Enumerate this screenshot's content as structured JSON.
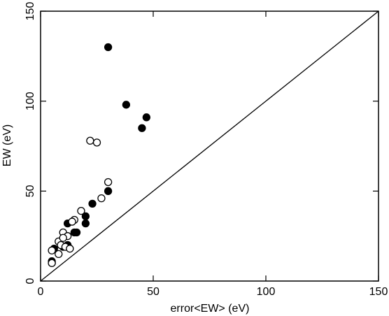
{
  "chart_data": {
    "type": "scatter",
    "title": "",
    "xlabel": "error<EW> (eV)",
    "ylabel": "EW (eV)",
    "xlim": [
      0,
      150
    ],
    "ylim": [
      0,
      150
    ],
    "x_ticks": [
      0,
      50,
      100,
      150
    ],
    "y_ticks": [
      0,
      50,
      100,
      150
    ],
    "x_tick_labels": [
      "0",
      "50",
      "100",
      "150"
    ],
    "y_tick_labels": [
      "0",
      "50",
      "100",
      "150"
    ],
    "grid": false,
    "legend": "none",
    "reference_line": {
      "type": "identity",
      "from": [
        0,
        0
      ],
      "to": [
        150,
        150
      ]
    },
    "series": [
      {
        "marker": "filled-circle",
        "color": "#000000",
        "points": [
          {
            "x": 30,
            "y": 130
          },
          {
            "x": 38,
            "y": 98
          },
          {
            "x": 47,
            "y": 91
          },
          {
            "x": 45,
            "y": 85
          },
          {
            "x": 30,
            "y": 50
          },
          {
            "x": 23,
            "y": 43
          },
          {
            "x": 20,
            "y": 36
          },
          {
            "x": 20,
            "y": 32
          },
          {
            "x": 12,
            "y": 32
          },
          {
            "x": 16,
            "y": 27
          },
          {
            "x": 15,
            "y": 27
          },
          {
            "x": 12,
            "y": 20
          },
          {
            "x": 10,
            "y": 19
          },
          {
            "x": 6,
            "y": 18
          },
          {
            "x": 5,
            "y": 11
          },
          {
            "x": 5,
            "y": 10
          }
        ]
      },
      {
        "marker": "open-circle",
        "color": "#000000",
        "points": [
          {
            "x": 22,
            "y": 78
          },
          {
            "x": 25,
            "y": 77
          },
          {
            "x": 30,
            "y": 55
          },
          {
            "x": 27,
            "y": 46
          },
          {
            "x": 18,
            "y": 39
          },
          {
            "x": 15,
            "y": 34
          },
          {
            "x": 14,
            "y": 33
          },
          {
            "x": 10,
            "y": 27
          },
          {
            "x": 12,
            "y": 25
          },
          {
            "x": 8,
            "y": 22
          },
          {
            "x": 10,
            "y": 24
          },
          {
            "x": 9,
            "y": 20
          },
          {
            "x": 11,
            "y": 19
          },
          {
            "x": 13,
            "y": 18
          },
          {
            "x": 5,
            "y": 17
          },
          {
            "x": 8,
            "y": 15
          },
          {
            "x": 5,
            "y": 10
          }
        ]
      }
    ]
  }
}
